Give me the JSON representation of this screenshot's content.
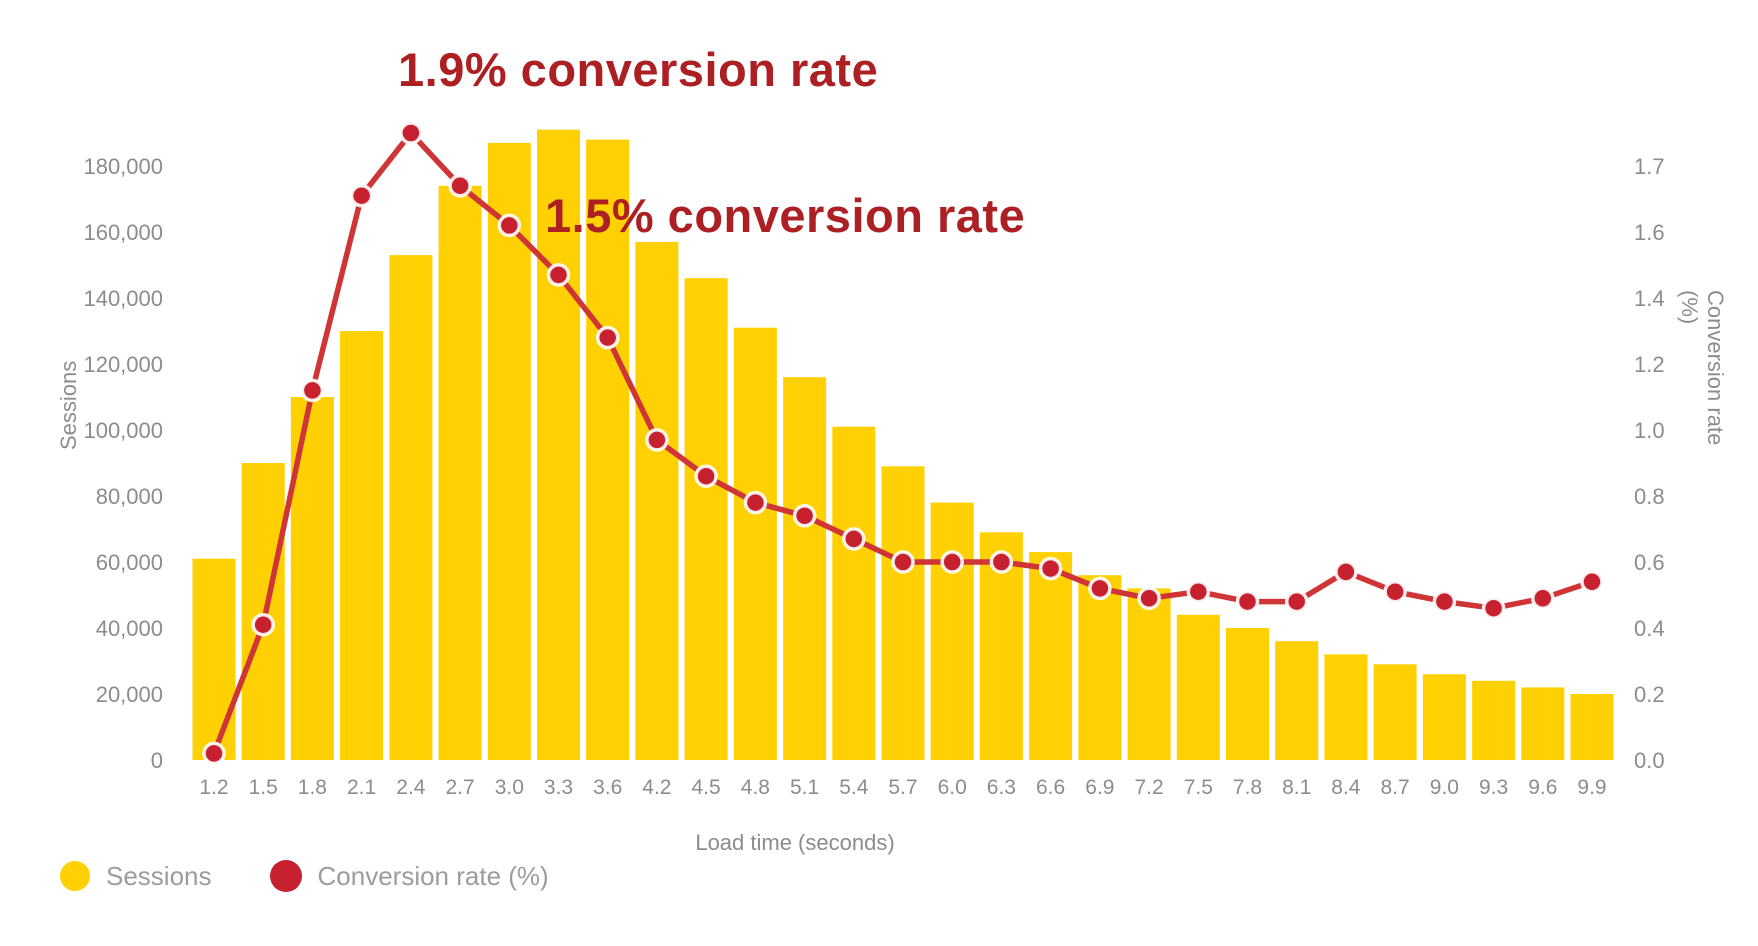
{
  "annotations": {
    "peak": "1.9% conversion rate",
    "secondary": "1.5% conversion rate"
  },
  "axes": {
    "left_title": "Sessions",
    "right_title": "Conversion rate (%)",
    "x_title": "Load time (seconds)",
    "left_ticks": [
      "0",
      "20,000",
      "40,000",
      "60,000",
      "80,000",
      "100,000",
      "120,000",
      "140,000",
      "160,000",
      "180,000"
    ],
    "right_ticks": [
      "0.0",
      "0.2",
      "0.4",
      "0.6",
      "0.8",
      "1.0",
      "1.2",
      "1.4",
      "1.6",
      "1.7"
    ]
  },
  "legend": [
    {
      "label": "Sessions",
      "color": "#FFD103"
    },
    {
      "label": "Conversion rate (%)",
      "color": "#C7202E"
    }
  ],
  "colors": {
    "bar": "#FFD103",
    "line": "#CE3534",
    "dot": "#C7202E",
    "dot_halo": "#FFFFFF",
    "annotation": "#AC2024",
    "axis_text": "#8C8C8C",
    "legend_text": "#9C9C9C"
  },
  "chart_data": {
    "type": "combo: bar + line",
    "title": "",
    "xlabel": "Load time (seconds)",
    "ylabel_left": "Sessions",
    "ylabel_right": "Conversion rate (%)",
    "ylim_left": [
      0,
      200000
    ],
    "ylim_right": [
      0,
      1.9
    ],
    "grid": false,
    "legend_position": "bottom-left",
    "right_axis_tick_labels_evenly_spaced": [
      "0.0",
      "0.2",
      "0.4",
      "0.6",
      "0.8",
      "1.0",
      "1.2",
      "1.4",
      "1.6",
      "1.7"
    ],
    "categories": [
      "1.2",
      "1.5",
      "1.8",
      "2.1",
      "2.4",
      "2.7",
      "3.0",
      "3.3",
      "3.6",
      "4.2",
      "4.5",
      "4.8",
      "5.1",
      "5.4",
      "5.7",
      "6.0",
      "6.3",
      "6.6",
      "6.9",
      "7.2",
      "7.5",
      "7.8",
      "8.1",
      "8.4",
      "8.7",
      "9.0",
      "9.3",
      "9.6",
      "9.9"
    ],
    "series": [
      {
        "name": "Sessions",
        "type": "bar",
        "axis": "left",
        "values": [
          61000,
          90000,
          110000,
          130000,
          153000,
          174000,
          187000,
          191000,
          188000,
          157000,
          146000,
          131000,
          116000,
          101000,
          89000,
          78000,
          69000,
          63000,
          56000,
          52000,
          44000,
          40000,
          36000,
          32000,
          29000,
          26000,
          24000,
          22000,
          20000
        ]
      },
      {
        "name": "Conversion rate (%)",
        "type": "line",
        "axis": "right",
        "values": [
          0.02,
          0.41,
          1.12,
          1.71,
          1.9,
          1.74,
          1.62,
          1.47,
          1.28,
          0.97,
          0.86,
          0.78,
          0.74,
          0.67,
          0.6,
          0.6,
          0.6,
          0.58,
          0.52,
          0.49,
          0.51,
          0.48,
          0.48,
          0.57,
          0.51,
          0.48,
          0.46,
          0.49,
          0.54
        ]
      }
    ],
    "annotated_points": [
      {
        "category": "2.4",
        "conversion_rate": 1.9,
        "label": "1.9% conversion rate"
      },
      {
        "category": "3.3",
        "conversion_rate": 1.5,
        "label": "1.5% conversion rate"
      }
    ]
  }
}
